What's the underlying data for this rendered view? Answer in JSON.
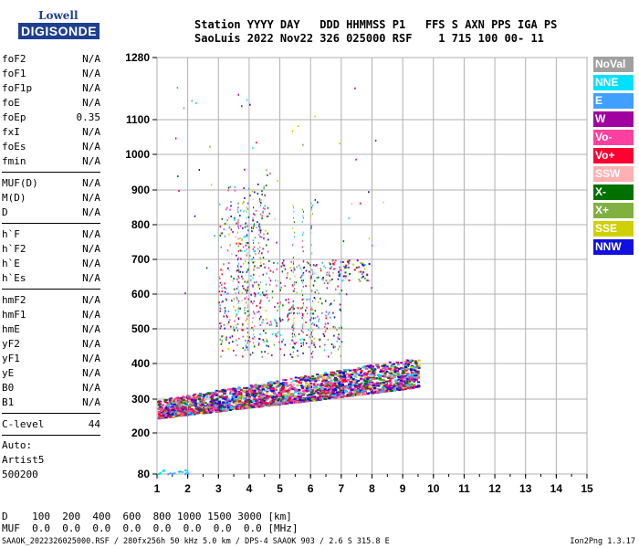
{
  "logo": {
    "line1": "Lowell",
    "line2": "DIGISONDE"
  },
  "header": {
    "labels": "Station YYYY DAY   DDD HHMMSS P1   FFS S AXN PPS IGA PS",
    "values": "SaoLuis 2022 Nov22 326 025000 RSF    1 715 100 00- 11"
  },
  "params": [
    {
      "name": "foF2",
      "value": "N/A"
    },
    {
      "name": "foF1",
      "value": "N/A"
    },
    {
      "name": "foF1p",
      "value": "N/A"
    },
    {
      "name": "foE",
      "value": "N/A"
    },
    {
      "name": "foEp",
      "value": "0.35"
    },
    {
      "name": "fxI",
      "value": "N/A"
    },
    {
      "name": "foEs",
      "value": "N/A"
    },
    {
      "name": "fmin",
      "value": "N/A"
    },
    {
      "sep": true
    },
    {
      "name": "MUF(D)",
      "value": "N/A"
    },
    {
      "name": "M(D)",
      "value": "N/A"
    },
    {
      "name": "D",
      "value": "N/A"
    },
    {
      "sep": true
    },
    {
      "name": "h`F",
      "value": "N/A"
    },
    {
      "name": "h`F2",
      "value": "N/A"
    },
    {
      "name": "h`E",
      "value": "N/A"
    },
    {
      "name": "h`Es",
      "value": "N/A"
    },
    {
      "sep": true
    },
    {
      "name": "hmF2",
      "value": "N/A"
    },
    {
      "name": "hmF1",
      "value": "N/A"
    },
    {
      "name": "hmE",
      "value": "N/A"
    },
    {
      "name": "yF2",
      "value": "N/A"
    },
    {
      "name": "yF1",
      "value": "N/A"
    },
    {
      "name": "yE",
      "value": "N/A"
    },
    {
      "name": "B0",
      "value": "N/A"
    },
    {
      "name": "B1",
      "value": "N/A"
    },
    {
      "sep": true
    },
    {
      "name": "C-level",
      "value": "44"
    },
    {
      "sep": true
    }
  ],
  "auto": {
    "line1": "Auto:",
    "line2": "Artist5",
    "line3": "500200"
  },
  "bottom_table": {
    "row1": "D    100  200  400  600  800 1000 1500 3000 [km]",
    "row2": "MUF  0.0  0.0  0.0  0.0  0.0  0.0  0.0  0.0 [MHz]"
  },
  "footer": {
    "left": "SAAOK_2022326025000.RSF / 280fx256h 50 kHz 5.0 km / DPS-4 SAAOK 903 / 2.6 S 315.8 E",
    "right": "Ion2Png 1.3.17"
  },
  "legend": [
    {
      "label": "NoVal",
      "color": "#a0a0a0"
    },
    {
      "label": "NNE",
      "color": "#00e0ff"
    },
    {
      "label": "E",
      "color": "#40a0ff"
    },
    {
      "label": "W",
      "color": "#a000a0"
    },
    {
      "label": "Vo-",
      "color": "#ff40a0"
    },
    {
      "label": "Vo+",
      "color": "#ff0030"
    },
    {
      "label": "SSW",
      "color": "#ffb0b0"
    },
    {
      "label": "X-",
      "color": "#007000"
    },
    {
      "label": "X+",
      "color": "#80b040"
    },
    {
      "label": "SSE",
      "color": "#d0d000"
    },
    {
      "label": "NNW",
      "color": "#1010e0"
    }
  ],
  "chart_data": {
    "type": "scatter",
    "x_ticks": [
      1,
      2,
      3,
      4,
      5,
      6,
      7,
      8,
      9,
      10,
      11,
      12,
      13,
      14,
      15
    ],
    "y_ticks": [
      80,
      200,
      300,
      400,
      500,
      600,
      700,
      800,
      900,
      1000,
      1100,
      1280
    ],
    "xlim": [
      1,
      15
    ],
    "ylim": [
      80,
      1280
    ],
    "y_scale": "nonlinear-ionogram",
    "grid": true,
    "regions": [
      {
        "name": "F-trace",
        "x": [
          1.0,
          9.5
        ],
        "y_low": [
          245,
          335
        ],
        "y_high": [
          300,
          420
        ],
        "density": "high"
      },
      {
        "name": "spread-F",
        "x": [
          3.0,
          7.0
        ],
        "y": [
          420,
          700
        ],
        "density": "medium"
      },
      {
        "name": "spread-F-upper",
        "x": [
          3.0,
          4.5
        ],
        "y": [
          700,
          920
        ],
        "density": "low"
      },
      {
        "name": "blob-low",
        "x": [
          1.0,
          2.0
        ],
        "y": [
          80,
          95
        ]
      }
    ]
  }
}
